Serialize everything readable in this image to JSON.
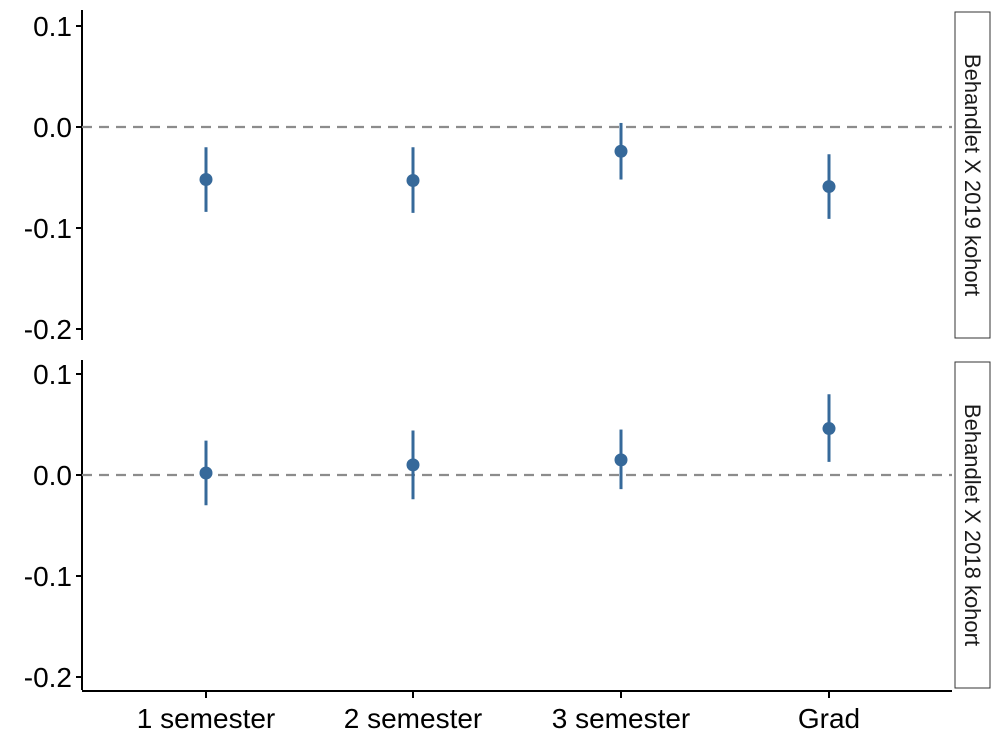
{
  "chart_data": {
    "type": "scatter",
    "subtype": "point-range-faceted",
    "categories": [
      "1 semester",
      "2 semester",
      "3 semester",
      "Grad"
    ],
    "y_ticks": [
      {
        "value": 0.1,
        "label": "0.1"
      },
      {
        "value": 0.0,
        "label": "0.0"
      },
      {
        "value": -0.1,
        "label": "-0.1"
      },
      {
        "value": -0.2,
        "label": "-0.2"
      }
    ],
    "ylim": [
      -0.21,
      0.115
    ],
    "reference_line": {
      "value": 0.0,
      "style": "dashed",
      "color": "#8c8c8c"
    },
    "point_color": "#36699a",
    "grid": false,
    "facets": [
      {
        "label": "Behandlet X 2019 kohort",
        "points": [
          {
            "category": "1 semester",
            "estimate": -0.052,
            "lower": -0.084,
            "upper": -0.02
          },
          {
            "category": "2 semester",
            "estimate": -0.053,
            "lower": -0.085,
            "upper": -0.02
          },
          {
            "category": "3 semester",
            "estimate": -0.024,
            "lower": -0.052,
            "upper": 0.004
          },
          {
            "category": "Grad",
            "estimate": -0.059,
            "lower": -0.091,
            "upper": -0.027
          }
        ]
      },
      {
        "label": "Behandlet X 2018 kohort",
        "points": [
          {
            "category": "1 semester",
            "estimate": 0.002,
            "lower": -0.03,
            "upper": 0.034
          },
          {
            "category": "2 semester",
            "estimate": 0.01,
            "lower": -0.024,
            "upper": 0.044
          },
          {
            "category": "3 semester",
            "estimate": 0.015,
            "lower": -0.014,
            "upper": 0.045
          },
          {
            "category": "Grad",
            "estimate": 0.046,
            "lower": 0.013,
            "upper": 0.08
          }
        ]
      }
    ]
  }
}
